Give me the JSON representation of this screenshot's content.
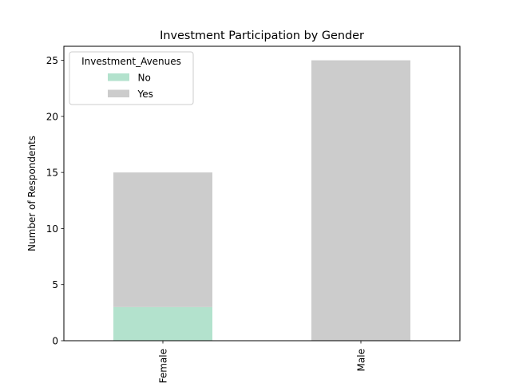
{
  "chart_data": {
    "type": "bar",
    "stacked": true,
    "title": "Investment Participation by Gender",
    "xlabel": "",
    "ylabel": "Number of Respondents",
    "categories": [
      "Female",
      "Male"
    ],
    "series": [
      {
        "name": "No",
        "values": [
          3,
          0
        ],
        "color": "#b3e2cd"
      },
      {
        "name": "Yes",
        "values": [
          12,
          25
        ],
        "color": "#cccccc"
      }
    ],
    "ylim": [
      0,
      26.25
    ],
    "yticks": [
      0,
      5,
      10,
      15,
      20,
      25
    ],
    "grid": false,
    "legend": {
      "title": "Investment_Avenues",
      "placement": "top-left"
    }
  }
}
